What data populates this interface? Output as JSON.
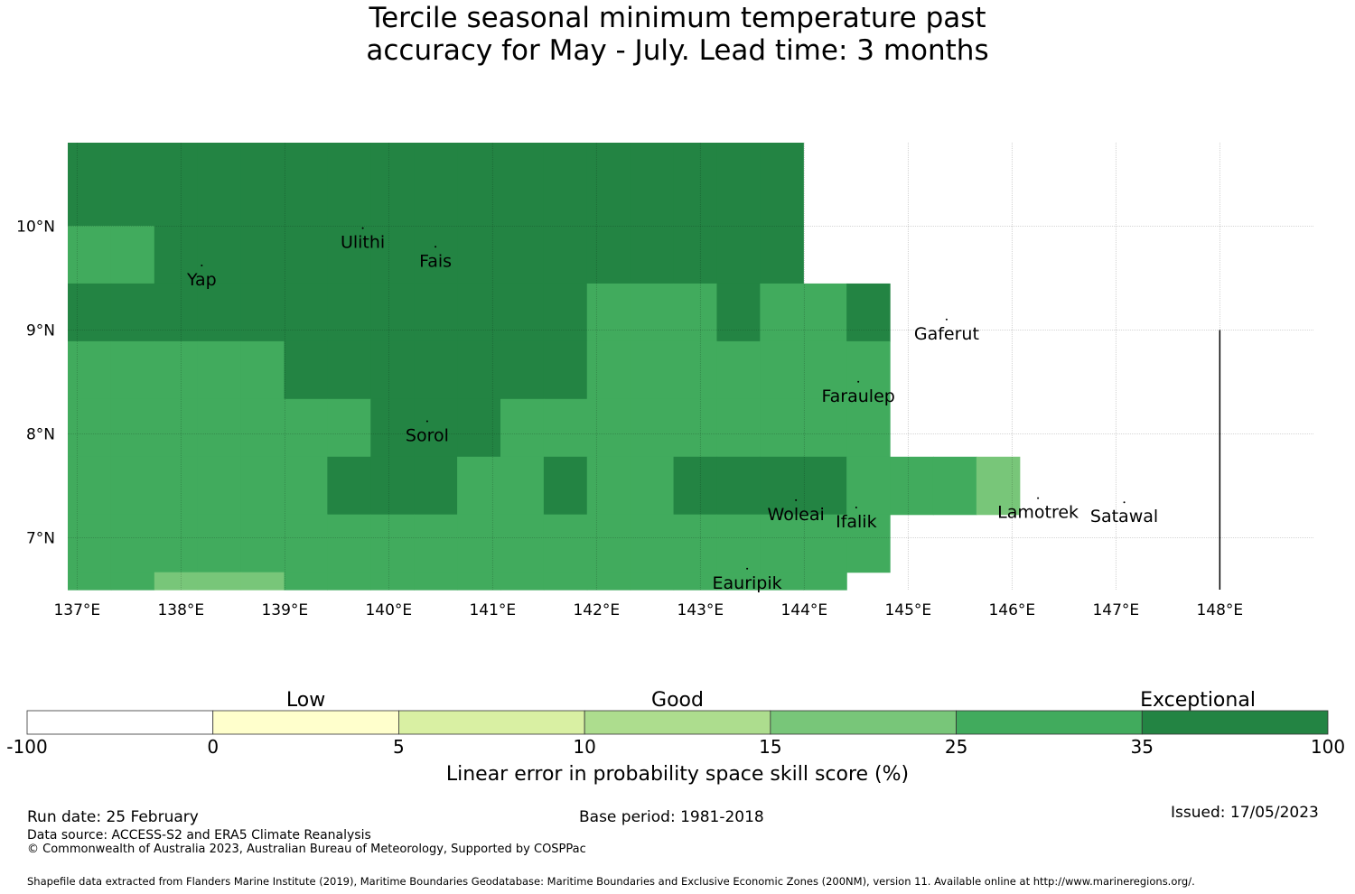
{
  "title": {
    "line1": "Tercile seasonal minimum temperature past",
    "line2": "accuracy for May - July. Lead time: 3 months"
  },
  "map": {
    "lon_range": [
      137,
      149
    ],
    "lat_range": [
      6.5,
      10.8
    ],
    "cell_lon_size": 0.833,
    "cell_lat_size": 0.556,
    "lon_ticks": [
      {
        "value": 137,
        "label": "137°E"
      },
      {
        "value": 138,
        "label": "138°E"
      },
      {
        "value": 139,
        "label": "139°E"
      },
      {
        "value": 140,
        "label": "140°E"
      },
      {
        "value": 141,
        "label": "141°E"
      },
      {
        "value": 142,
        "label": "142°E"
      },
      {
        "value": 143,
        "label": "143°E"
      },
      {
        "value": 144,
        "label": "144°E"
      },
      {
        "value": 145,
        "label": "145°E"
      },
      {
        "value": 146,
        "label": "146°E"
      },
      {
        "value": 147,
        "label": "147°E"
      },
      {
        "value": 148,
        "label": "148°E"
      }
    ],
    "lat_ticks": [
      {
        "value": 7,
        "label": "7°N"
      },
      {
        "value": 8,
        "label": "8°N"
      },
      {
        "value": 9,
        "label": "9°N"
      },
      {
        "value": 10,
        "label": "10°N"
      }
    ],
    "class_colors": [
      "#ffffff",
      "#ffffcc",
      "#d9f0a3",
      "#addd8e",
      "#78c679",
      "#41ab5d",
      "#238443"
    ],
    "rows": [
      [
        6,
        6,
        6,
        6,
        6,
        6,
        6,
        6,
        6,
        6,
        6,
        6,
        6,
        6,
        6,
        6,
        6
      ],
      [
        5,
        5,
        6,
        6,
        6,
        6,
        6,
        6,
        6,
        6,
        6,
        6,
        6,
        6,
        6,
        6,
        6
      ],
      [
        6,
        6,
        6,
        6,
        6,
        6,
        6,
        6,
        6,
        6,
        6,
        6,
        5,
        5,
        5,
        6,
        5,
        5,
        6
      ],
      [
        5,
        5,
        5,
        5,
        5,
        6,
        6,
        6,
        6,
        6,
        6,
        6,
        5,
        5,
        5,
        5,
        5,
        5,
        5
      ],
      [
        5,
        5,
        5,
        5,
        5,
        5,
        5,
        6,
        6,
        6,
        5,
        5,
        5,
        5,
        5,
        5,
        5,
        5,
        5
      ],
      [
        5,
        5,
        5,
        5,
        5,
        5,
        6,
        6,
        6,
        5,
        5,
        6,
        5,
        5,
        6,
        6,
        6,
        6,
        5,
        5,
        5,
        4
      ],
      [
        5,
        5,
        5,
        5,
        5,
        5,
        5,
        5,
        5,
        5,
        5,
        5,
        5,
        5,
        5,
        5,
        5,
        5,
        5
      ],
      [
        5,
        5,
        4,
        4,
        4,
        5,
        5,
        5,
        5,
        5,
        5,
        5,
        5,
        5,
        5,
        5,
        5,
        5
      ]
    ],
    "places": [
      {
        "name": "Ulithi",
        "lon": 139.75,
        "lat": 9.86
      },
      {
        "name": "Fais",
        "lon": 140.45,
        "lat": 9.68
      },
      {
        "name": "Yap",
        "lon": 138.2,
        "lat": 9.5
      },
      {
        "name": "Gaferut",
        "lon": 145.37,
        "lat": 8.98
      },
      {
        "name": "Faraulep",
        "lon": 144.52,
        "lat": 8.38
      },
      {
        "name": "Sorol",
        "lon": 140.37,
        "lat": 8.0
      },
      {
        "name": "Woleai",
        "lon": 143.92,
        "lat": 7.24
      },
      {
        "name": "Ifalik",
        "lon": 144.5,
        "lat": 7.17
      },
      {
        "name": "Lamotrek",
        "lon": 146.25,
        "lat": 7.26
      },
      {
        "name": "Satawal",
        "lon": 147.08,
        "lat": 7.22
      },
      {
        "name": "Eauripik",
        "lon": 143.45,
        "lat": 6.58
      }
    ],
    "boundary_line": {
      "lon": 148,
      "lat_from": 6.5,
      "lat_to": 9.0
    }
  },
  "legend": {
    "category_labels": [
      "Low",
      "Good",
      "Exceptional"
    ],
    "tick_labels": [
      "-100",
      "0",
      "5",
      "10",
      "15",
      "25",
      "35",
      "100"
    ],
    "colors": [
      "#ffffff",
      "#ffffcc",
      "#d9f0a3",
      "#addd8e",
      "#78c679",
      "#41ab5d",
      "#238443"
    ],
    "axis_title": "Linear error in probability space skill score (%)"
  },
  "footer": {
    "run_date": "Run date: 25 February",
    "base_period": "Base period: 1981-2018",
    "issued": "Issued: 17/05/2023",
    "data_source": "Data source: ACCESS-S2 and ERA5 Climate Reanalysis",
    "copyright": "© Commonwealth of Australia 2023, Australian Bureau of Meteorology, Supported by COSPPac",
    "shapefile": "Shapefile data extracted from Flanders Marine Institute (2019), Maritime Boundaries Geodatabase: Maritime Boundaries and Exclusive Economic Zones (200NM), version 11. Available online at http://www.marineregions.org/."
  }
}
